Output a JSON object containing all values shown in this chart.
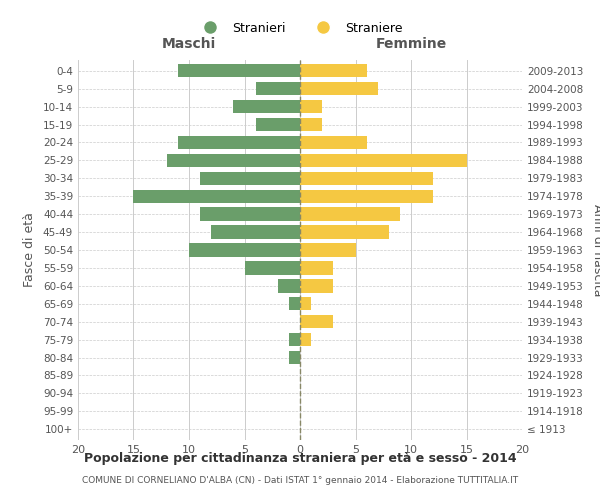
{
  "age_groups": [
    "100+",
    "95-99",
    "90-94",
    "85-89",
    "80-84",
    "75-79",
    "70-74",
    "65-69",
    "60-64",
    "55-59",
    "50-54",
    "45-49",
    "40-44",
    "35-39",
    "30-34",
    "25-29",
    "20-24",
    "15-19",
    "10-14",
    "5-9",
    "0-4"
  ],
  "birth_years": [
    "≤ 1913",
    "1914-1918",
    "1919-1923",
    "1924-1928",
    "1929-1933",
    "1934-1938",
    "1939-1943",
    "1944-1948",
    "1949-1953",
    "1954-1958",
    "1959-1963",
    "1964-1968",
    "1969-1973",
    "1974-1978",
    "1979-1983",
    "1984-1988",
    "1989-1993",
    "1994-1998",
    "1999-2003",
    "2004-2008",
    "2009-2013"
  ],
  "maschi": [
    0,
    0,
    0,
    0,
    1,
    1,
    0,
    1,
    2,
    5,
    10,
    8,
    9,
    15,
    9,
    12,
    11,
    4,
    6,
    4,
    11
  ],
  "femmine": [
    0,
    0,
    0,
    0,
    0,
    1,
    3,
    1,
    3,
    3,
    5,
    8,
    9,
    12,
    12,
    15,
    6,
    2,
    2,
    7,
    6
  ],
  "color_maschi": "#6a9e6a",
  "color_femmine": "#f5c842",
  "title": "Popolazione per cittadinanza straniera per età e sesso - 2014",
  "subtitle": "COMUNE DI CORNELIANO D'ALBA (CN) - Dati ISTAT 1° gennaio 2014 - Elaborazione TUTTITALIA.IT",
  "xlabel_left": "Maschi",
  "xlabel_right": "Femmine",
  "ylabel_left": "Fasce di età",
  "ylabel_right": "Anni di nascita",
  "xlim": 20,
  "legend_stranieri": "Stranieri",
  "legend_straniere": "Straniere",
  "bg_color": "#ffffff",
  "grid_color": "#cccccc"
}
